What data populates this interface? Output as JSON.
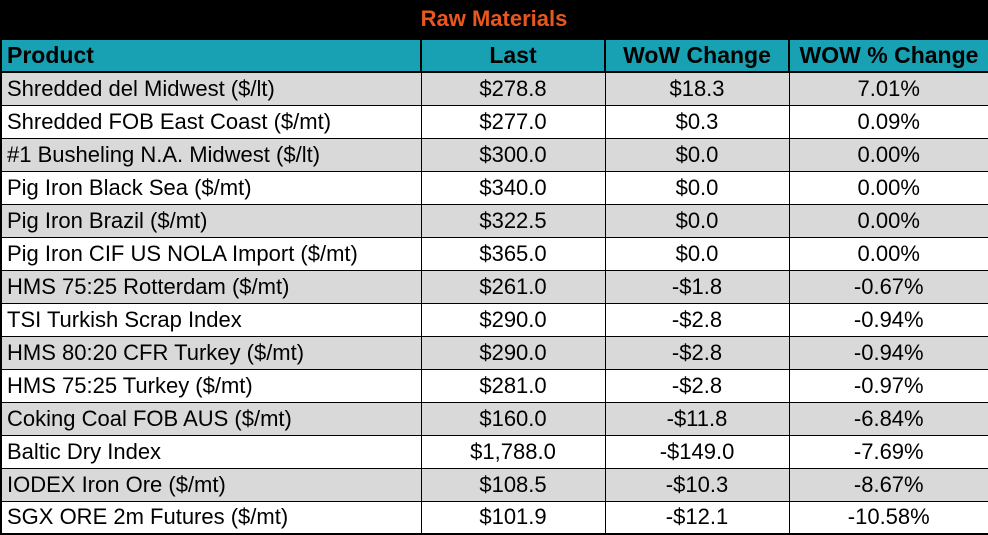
{
  "title": "Raw Materials",
  "columns": [
    "Product",
    "Last",
    "WoW Change",
    "WOW % Change"
  ],
  "rows": [
    {
      "product": "Shredded del  Midwest ($/lt)",
      "last": "$278.8",
      "wow": "$18.3",
      "pct": "7.01%"
    },
    {
      "product": "Shredded FOB East Coast ($/mt)",
      "last": "$277.0",
      "wow": "$0.3",
      "pct": "0.09%"
    },
    {
      "product": "#1 Busheling N.A. Midwest ($/lt)",
      "last": "$300.0",
      "wow": "$0.0",
      "pct": "0.00%"
    },
    {
      "product": "Pig Iron Black Sea ($/mt)",
      "last": "$340.0",
      "wow": "$0.0",
      "pct": "0.00%"
    },
    {
      "product": "Pig Iron Brazil ($/mt)",
      "last": "$322.5",
      "wow": "$0.0",
      "pct": "0.00%"
    },
    {
      "product": "Pig Iron CIF US NOLA Import ($/mt)",
      "last": "$365.0",
      "wow": "$0.0",
      "pct": "0.00%"
    },
    {
      "product": "HMS 75:25 Rotterdam ($/mt)",
      "last": "$261.0",
      "wow": "-$1.8",
      "pct": "-0.67%"
    },
    {
      "product": "TSI Turkish Scrap Index",
      "last": "$290.0",
      "wow": "-$2.8",
      "pct": "-0.94%"
    },
    {
      "product": "HMS 80:20 CFR Turkey ($/mt)",
      "last": "$290.0",
      "wow": "-$2.8",
      "pct": "-0.94%"
    },
    {
      "product": "HMS 75:25 Turkey ($/mt)",
      "last": "$281.0",
      "wow": "-$2.8",
      "pct": "-0.97%"
    },
    {
      "product": "Coking Coal FOB AUS ($/mt)",
      "last": "$160.0",
      "wow": "-$11.8",
      "pct": "-6.84%"
    },
    {
      "product": "Baltic Dry Index",
      "last": "$1,788.0",
      "wow": "-$149.0",
      "pct": "-7.69%"
    },
    {
      "product": "IODEX  Iron Ore ($/mt)",
      "last": "$108.5",
      "wow": "-$10.3",
      "pct": "-8.67%"
    },
    {
      "product": "SGX ORE 2m Futures ($/mt)",
      "last": "$101.9",
      "wow": "-$12.1",
      "pct": "-10.58%"
    }
  ],
  "colors": {
    "title_bg": "#000000",
    "title_text": "#e8571e",
    "header_bg": "#17a1b3",
    "row_shade": "#d9d9d9"
  }
}
